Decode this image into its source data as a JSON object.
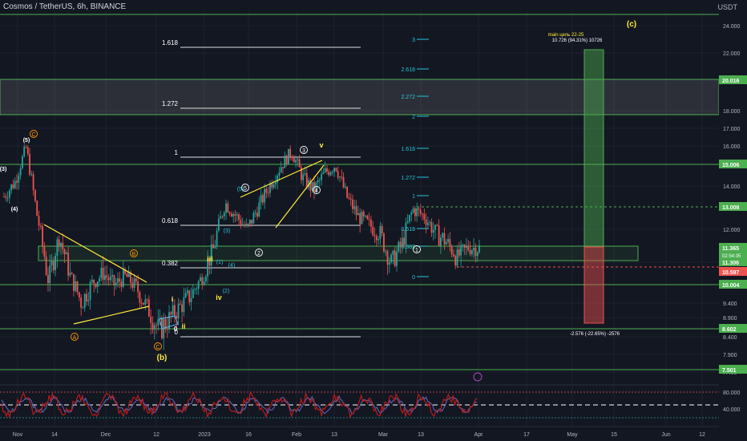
{
  "header": {
    "symbol_line": "Cosmos / TetherUS, 6h, BINANCE",
    "currency": "USDT"
  },
  "colors": {
    "bg": "#131722",
    "grid": "#1e222d",
    "up": "#26a69a",
    "down": "#ef5350",
    "level_green": "#4caf50",
    "fib_white": "#ffffff",
    "fib_cyan": "#26c6da",
    "wave_yellow": "#ffeb3b",
    "wave_orange": "#ff9800",
    "rsi_line": "#b71c1c",
    "rsi_line2": "#5c6bc0"
  },
  "chart_data": {
    "type": "candlestick",
    "title": "Cosmos / TetherUS, 6h, BINANCE",
    "x_ticks": [
      "Nov",
      "14",
      "Dec",
      "12",
      "2023",
      "16",
      "Feb",
      "13",
      "Mar",
      "13",
      "Apr",
      "17",
      "May",
      "15",
      "Jun",
      "12"
    ],
    "y_ticks": [
      "24.000",
      "22.000",
      "20.000",
      "18.000",
      "17.000",
      "16.000",
      "14.000",
      "12.000",
      "11.000",
      "9.400",
      "8.900",
      "8.400",
      "7.900",
      "7.400"
    ],
    "ylim": [
      7.0,
      25.0
    ],
    "price_path": [
      [
        "Nov",
        13.5
      ],
      [
        "4 Nov",
        14.2
      ],
      [
        "8 Nov",
        15.9
      ],
      [
        "10 Nov",
        12.6
      ],
      [
        "12 Nov",
        10.2
      ],
      [
        "14 Nov",
        11.8
      ],
      [
        "18 Nov",
        10.4
      ],
      [
        "22 Nov",
        9.4
      ],
      [
        "26 Nov",
        10.1
      ],
      [
        "1 Dec",
        10.5
      ],
      [
        "6 Dec",
        10.0
      ],
      [
        "10 Dec",
        10.4
      ],
      [
        "15 Dec",
        9.9
      ],
      [
        "18 Dec",
        9.2
      ],
      [
        "20 Dec",
        8.55
      ],
      [
        "24 Dec",
        8.9
      ],
      [
        "28 Dec",
        9.3
      ],
      [
        "1 Jan",
        9.7
      ],
      [
        "5 Jan",
        10.4
      ],
      [
        "9 Jan",
        11.4
      ],
      [
        "12 Jan",
        13.2
      ],
      [
        "15 Jan",
        12.6
      ],
      [
        "18 Jan",
        12.0
      ],
      [
        "23 Jan",
        13.0
      ],
      [
        "28 Jan",
        14.0
      ],
      [
        "2 Feb",
        14.9
      ],
      [
        "6 Feb",
        15.7
      ],
      [
        "8 Feb",
        14.4
      ],
      [
        "11 Feb",
        13.8
      ],
      [
        "15 Feb",
        14.6
      ],
      [
        "19 Feb",
        15.0
      ],
      [
        "23 Feb",
        13.5
      ],
      [
        "27 Feb",
        12.6
      ],
      [
        "2 Mar",
        12.2
      ],
      [
        "6 Mar",
        11.9
      ],
      [
        "9 Mar",
        10.8
      ],
      [
        "11 Mar",
        11.5
      ],
      [
        "13 Mar",
        12.9
      ],
      [
        "16 Mar",
        12.6
      ],
      [
        "19 Mar",
        11.9
      ],
      [
        "23 Mar",
        11.6
      ],
      [
        "26 Mar",
        11.0
      ],
      [
        "29 Mar",
        11.4
      ],
      [
        "31 Mar",
        11.365
      ]
    ],
    "price_labels": [
      {
        "text": "20.016",
        "style": "green"
      },
      {
        "text": "15.006",
        "style": "green"
      },
      {
        "text": "13.008",
        "style": "green"
      },
      {
        "text": "11.365",
        "style": "green",
        "sub": "02:54:35"
      },
      {
        "text": "11.306",
        "style": "green"
      },
      {
        "text": "10.597",
        "style": "red"
      },
      {
        "text": "10.004",
        "style": "green"
      },
      {
        "text": "8.602",
        "style": "green"
      },
      {
        "text": "7.501",
        "style": "green"
      }
    ],
    "fib_white": [
      {
        "text": "1.618"
      },
      {
        "text": "1.272"
      },
      {
        "text": "1"
      },
      {
        "text": "0.618"
      },
      {
        "text": "0.382"
      },
      {
        "text": "0"
      }
    ],
    "fib_cyan": [
      {
        "text": "3"
      },
      {
        "text": "2.618"
      },
      {
        "text": "2.272"
      },
      {
        "text": "2"
      },
      {
        "text": "1.618"
      },
      {
        "text": "1.272"
      },
      {
        "text": "1"
      },
      {
        "text": "0.618"
      },
      {
        "text": "0.382"
      },
      {
        "text": "0"
      }
    ],
    "position_tool": {
      "target_text": "10.726 (94.31%) 10726",
      "target_note": "main цель 22-25",
      "stop_text": "-2.576 (-22.65%) -2576"
    },
    "wave_labels": [
      {
        "text": "(c)",
        "color": "yellow"
      },
      {
        "text": "(b)",
        "color": "yellow"
      },
      {
        "text": "(5)",
        "color": "white"
      },
      {
        "text": "(3)",
        "color": "white"
      },
      {
        "text": "(4)",
        "color": "white"
      },
      {
        "text": "i",
        "color": "yellow"
      },
      {
        "text": "ii",
        "color": "yellow"
      },
      {
        "text": "iii",
        "color": "yellow"
      },
      {
        "text": "iv",
        "color": "yellow"
      },
      {
        "text": "v",
        "color": "yellow"
      },
      {
        "text": "(1)",
        "color": "cyan"
      },
      {
        "text": "(2)",
        "color": "cyan"
      },
      {
        "text": "(3)",
        "color": "cyan"
      },
      {
        "text": "(4)",
        "color": "cyan"
      },
      {
        "text": "(5)",
        "color": "cyan"
      },
      {
        "text": "1",
        "color": "white"
      },
      {
        "text": "2",
        "color": "white"
      },
      {
        "text": "3",
        "color": "white"
      },
      {
        "text": "4",
        "color": "white"
      },
      {
        "text": "5",
        "color": "white"
      },
      {
        "text": "A",
        "color": "orange"
      },
      {
        "text": "B",
        "color": "orange"
      },
      {
        "text": "C",
        "color": "orange"
      },
      {
        "text": "C",
        "color": "orange"
      },
      {
        "text": "0",
        "color": "white"
      }
    ],
    "rsi": {
      "y_ticks": [
        "80.000",
        "40.000"
      ],
      "levels": [
        80,
        60,
        40
      ]
    }
  }
}
